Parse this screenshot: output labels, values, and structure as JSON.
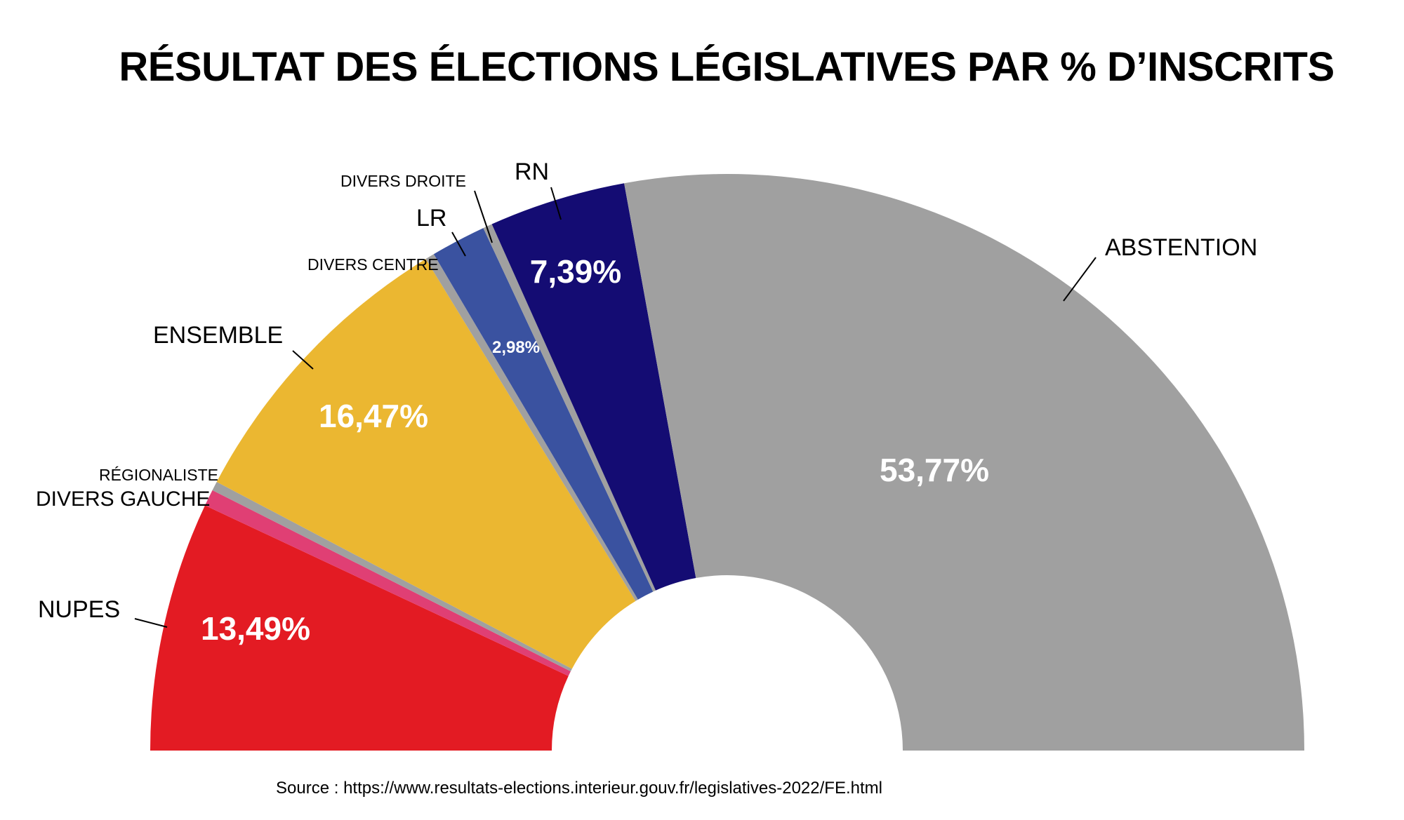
{
  "chart_data": {
    "type": "pie",
    "subtype": "half-donut",
    "title": "RÉSULTAT DES ÉLECTIONS LÉGISLATIVES PAR % D’INSCRITS",
    "source": "Source : https://www.resultats-elections.interieur.gouv.fr/legislatives-2022/FE.html",
    "slices": [
      {
        "name": "NUPES",
        "value": 13.49,
        "value_label": "13,49%",
        "color": "#e31b23"
      },
      {
        "name": "DIVERS GAUCHE",
        "value": 0.9,
        "value_label": "",
        "color": "#e03f74"
      },
      {
        "name": "RÉGIONALISTE",
        "value": 0.5,
        "value_label": "",
        "color": "#a0a0a0"
      },
      {
        "name": "ENSEMBLE",
        "value": 16.47,
        "value_label": "16,47%",
        "color": "#ebb731"
      },
      {
        "name": "DIVERS CENTRE",
        "value": 0.5,
        "value_label": "",
        "color": "#a0a0a0"
      },
      {
        "name": "LR",
        "value": 2.98,
        "value_label": "2,98%",
        "color": "#3a52a0"
      },
      {
        "name": "DIVERS DROITE",
        "value": 0.5,
        "value_label": "",
        "color": "#a0a0a0"
      },
      {
        "name": "RN",
        "value": 7.39,
        "value_label": "7,39%",
        "color": "#140c73"
      },
      {
        "name": "ABSTENTION",
        "value": 53.77,
        "value_label": "53,77%",
        "color": "#a0a0a0"
      }
    ]
  }
}
